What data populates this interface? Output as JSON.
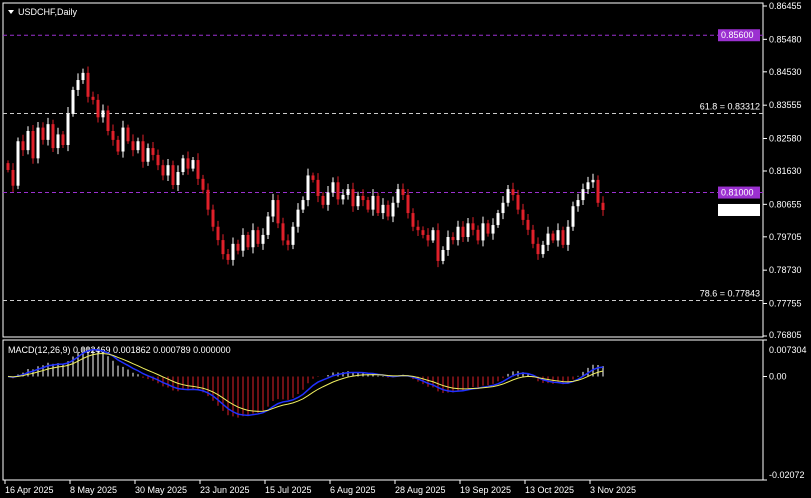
{
  "chart_data": {
    "type": "candlestick",
    "title": "USDCHF,Daily",
    "symbol": "USDCHF",
    "timeframe": "Daily",
    "ylim": [
      0.76805,
      0.86455
    ],
    "y_ticks": [
      "0.86455",
      "0.85480",
      "0.84530",
      "0.83555",
      "0.82580",
      "0.81630",
      "0.80655",
      "0.79705",
      "0.78730",
      "0.77755",
      "0.76805"
    ],
    "x_ticks": [
      "16 Apr 2025",
      "8 May 2025",
      "30 May 2025",
      "23 Jun 2025",
      "15 Jul 2025",
      "6 Aug 2025",
      "28 Aug 2025",
      "19 Sep 2025",
      "13 Oct 2025",
      "3 Nov 2025"
    ],
    "current_price": "0.80495",
    "levels": [
      {
        "value": 0.856,
        "label": "0.85600",
        "color": "#9b30d0",
        "tag": true
      },
      {
        "value": 0.81,
        "label": "0.81000",
        "color": "#9b30d0",
        "tag": true
      },
      {
        "value": 0.83312,
        "label": "61.8 = 0.83312",
        "color": "#cccccc",
        "tag": false
      },
      {
        "value": 0.77843,
        "label": "78.6 = 0.77843",
        "color": "#cccccc",
        "tag": false
      }
    ],
    "closes": [
      0.8166,
      0.812,
      0.825,
      0.8224,
      0.828,
      0.82,
      0.829,
      0.8254,
      0.83,
      0.823,
      0.827,
      0.8239,
      0.833,
      0.84,
      0.8429,
      0.845,
      0.838,
      0.8371,
      0.832,
      0.834,
      0.828,
      0.8254,
      0.822,
      0.829,
      0.825,
      0.8224,
      0.825,
      0.819,
      0.823,
      0.821,
      0.818,
      0.815,
      0.818,
      0.8122,
      0.816,
      0.82,
      0.817,
      0.8195,
      0.814,
      0.8108,
      0.805,
      0.8,
      0.7961,
      0.792,
      0.7903,
      0.795,
      0.793,
      0.7976,
      0.794,
      0.799,
      0.795,
      0.7976,
      0.803,
      0.8078,
      0.801,
      0.796,
      0.7947,
      0.8,
      0.805,
      0.8078,
      0.815,
      0.8137,
      0.809,
      0.8064,
      0.81,
      0.813,
      0.808,
      0.8093,
      0.811,
      0.806,
      0.809,
      0.8078,
      0.805,
      0.809,
      0.804,
      0.8064,
      0.803,
      0.807,
      0.811,
      0.8093,
      0.804,
      0.8,
      0.799,
      0.7976,
      0.796,
      0.799,
      0.79,
      0.7932,
      0.797,
      0.7961,
      0.8,
      0.797,
      0.801,
      0.7991,
      0.796,
      0.801,
      0.798,
      0.8005,
      0.804,
      0.807,
      0.811,
      0.8093,
      0.805,
      0.802,
      0.7991,
      0.795,
      0.792,
      0.7947,
      0.798,
      0.796,
      0.799,
      0.7947,
      0.8,
      0.806,
      0.8078,
      0.811,
      0.813,
      0.8137,
      0.807,
      0.8049
    ],
    "colors": {
      "bull": "#ffffff",
      "bear": "#e0202a",
      "signal": "#f0f060",
      "macd_line": "#2030ff",
      "grid_level": "#9b30d0"
    },
    "macd": {
      "label": "MACD(12,26,9) 0.002469 0.001862 0.000789 0.000000",
      "ylim": [
        -0.02072,
        0.007304
      ],
      "y_ticks": [
        "0.007304",
        "0.00",
        "-0.02072"
      ]
    }
  }
}
